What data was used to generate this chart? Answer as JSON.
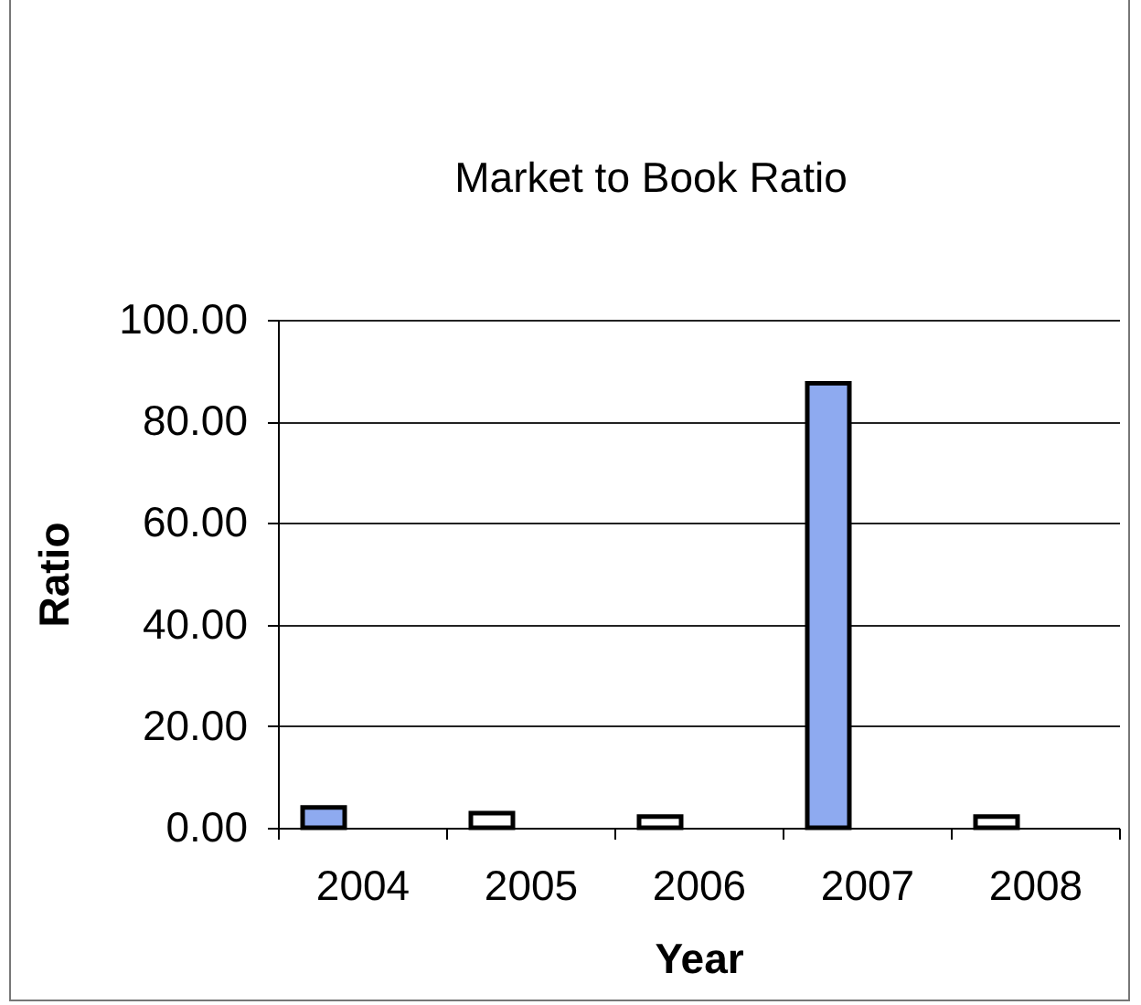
{
  "chart_data": {
    "type": "bar",
    "title": "Market to Book Ratio",
    "xlabel": "Year",
    "ylabel": "Ratio",
    "categories": [
      "2004",
      "2005",
      "2006",
      "2007",
      "2008"
    ],
    "values": [
      4.0,
      2.9,
      2.2,
      87.5,
      2.2
    ],
    "colors": [
      "#8eaaf0",
      "#ffffff",
      "#ffffff",
      "#8eaaf0",
      "#ffffff"
    ],
    "ylim": [
      0,
      100
    ],
    "yticks": [
      {
        "value": 0,
        "label": "0.00"
      },
      {
        "value": 20,
        "label": "20.00"
      },
      {
        "value": 40,
        "label": "40.00"
      },
      {
        "value": 60,
        "label": "60.00"
      },
      {
        "value": 80,
        "label": "80.00"
      },
      {
        "value": 100,
        "label": "100.00"
      }
    ],
    "grid": "y"
  }
}
